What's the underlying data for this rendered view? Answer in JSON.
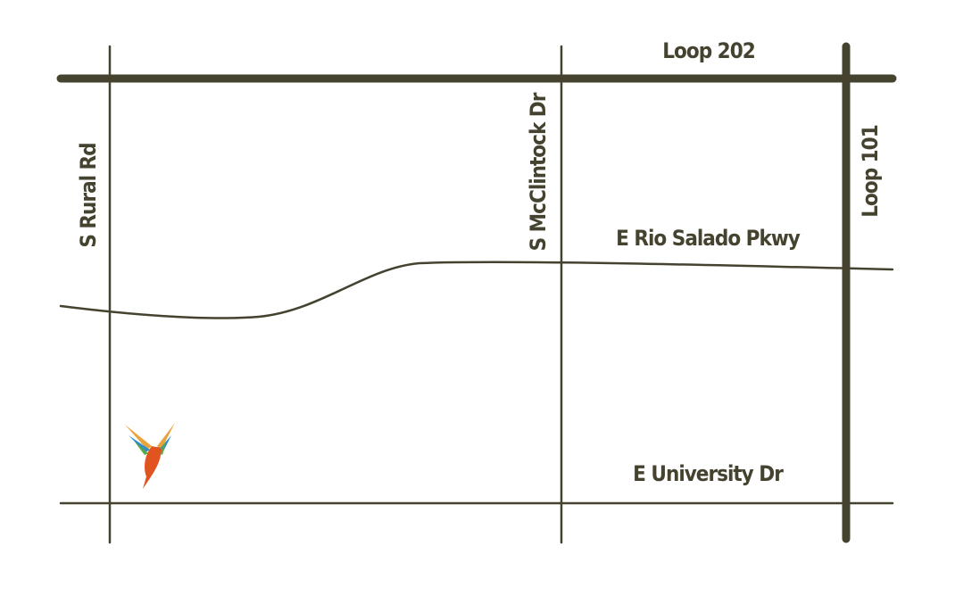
{
  "roads": [
    {
      "label": "Loop 202"
    },
    {
      "label": "Loop 101"
    },
    {
      "label": "S Rural Rd"
    },
    {
      "label": "S McClintock Dr"
    },
    {
      "label": "E Rio Salado Pkwy"
    },
    {
      "label": "E University Dr"
    }
  ]
}
